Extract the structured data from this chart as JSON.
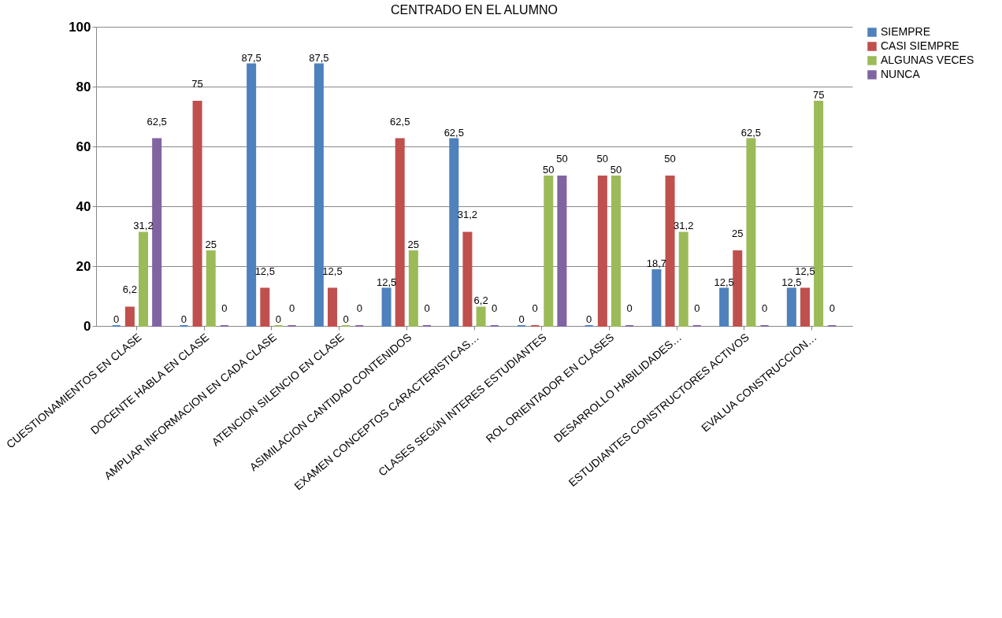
{
  "chart_data": {
    "type": "bar",
    "title": "CENTRADO EN EL ALUMNO",
    "categories": [
      "CUESTIONAMIENTOS EN CLASE",
      "DOCENTE HABLA EN CLASE",
      "AMPLIAR INFORMACION EN CADA CLASE",
      "ATENCION SILENCIO EN CLASE",
      "ASIMILACION CANTIDAD CONTENIDOS",
      "EXAMEN CONCEPTOS CARACTERISTICAS…",
      "CLASES SEGúN INTERES ESTUDIANTES",
      "ROL ORIENTADOR EN CLASES",
      "DESARROLLO HABILIDADES…",
      "ESTUDIANTES CONSTRUCTORES ACTIVOS",
      "EVALUA CONSTRUCCION…"
    ],
    "series": [
      {
        "name": "SIEMPRE",
        "color": "#4f81bd",
        "values": [
          0,
          0,
          87.5,
          87.5,
          12.5,
          62.5,
          0,
          0,
          18.7,
          12.5,
          12.5
        ],
        "value_labels": [
          "0",
          "0",
          "87,5",
          "87,5",
          "12,5",
          "62,5",
          "0",
          "0",
          "18,7",
          "12,5",
          "12,5"
        ]
      },
      {
        "name": "CASI SIEMPRE",
        "color": "#c0504d",
        "values": [
          6.2,
          75,
          12.5,
          12.5,
          62.5,
          31.2,
          0,
          50,
          50,
          25,
          12.5
        ],
        "value_labels": [
          "6,2",
          "75",
          "12,5",
          "12,5",
          "62,5",
          "31,2",
          "0",
          "50",
          "50",
          "25",
          "12,5"
        ]
      },
      {
        "name": "ALGUNAS VECES",
        "color": "#9bbb59",
        "values": [
          31.2,
          25,
          0,
          0,
          25,
          6.2,
          50,
          50,
          31.2,
          62.5,
          75
        ],
        "value_labels": [
          "31,2",
          "25",
          "0",
          "0",
          "25",
          "6,2",
          "50",
          "50",
          "31,2",
          "62,5",
          "75"
        ]
      },
      {
        "name": "NUNCA",
        "color": "#8064a2",
        "values": [
          62.5,
          0,
          0,
          0,
          0,
          0,
          50,
          0,
          0,
          0,
          0
        ],
        "value_labels": [
          "62,5",
          "0",
          "0",
          "0",
          "0",
          "0",
          "50",
          "0",
          "0",
          "0",
          "0"
        ]
      }
    ],
    "ylim": [
      0,
      100
    ],
    "yticks": [
      0,
      20,
      40,
      60,
      80,
      100
    ],
    "grid": "y",
    "legend": "right"
  }
}
